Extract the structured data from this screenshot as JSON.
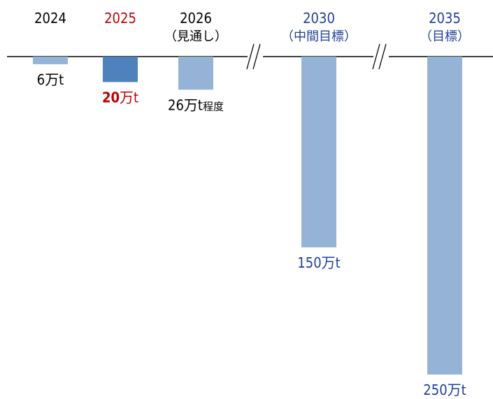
{
  "chart_data": {
    "type": "bar",
    "orientation": "downward-from-baseline",
    "unit": "万t",
    "categories": [
      {
        "year": "2024",
        "sub": "",
        "value": 6,
        "label_num": "6",
        "label_unit": "万t",
        "label_suffix": "",
        "year_color": "#000000",
        "label_color": "#000000",
        "label_bold": false,
        "bar_color": "#95b3d7"
      },
      {
        "year": "2025",
        "sub": "",
        "value": 20,
        "label_num": "20",
        "label_unit": "万t",
        "label_suffix": "",
        "year_color": "#c00000",
        "label_color": "#c00000",
        "label_bold": true,
        "bar_color": "#4f81bd"
      },
      {
        "year": "2026",
        "sub": "（見通し）",
        "value": 26,
        "label_num": "26",
        "label_unit": "万t",
        "label_suffix": "程度",
        "year_color": "#000000",
        "label_color": "#000000",
        "label_bold": false,
        "bar_color": "#95b3d7"
      },
      {
        "year": "2030",
        "sub": "（中間目標）",
        "value": 150,
        "label_num": "150",
        "label_unit": "万t",
        "label_suffix": "",
        "year_color": "#1f3f99",
        "label_color": "#1f3f99",
        "label_bold": false,
        "bar_color": "#95b3d7"
      },
      {
        "year": "2035",
        "sub": "（目標）",
        "value": 250,
        "label_num": "250",
        "label_unit": "万t",
        "label_suffix": "",
        "year_color": "#1f3f99",
        "label_color": "#1f3f99",
        "label_bold": false,
        "bar_color": "#95b3d7"
      }
    ],
    "axis_breaks_after": [
      "2026",
      "2030"
    ],
    "title": "",
    "xlabel": "",
    "ylabel": "",
    "grid": false,
    "legend": "none"
  }
}
